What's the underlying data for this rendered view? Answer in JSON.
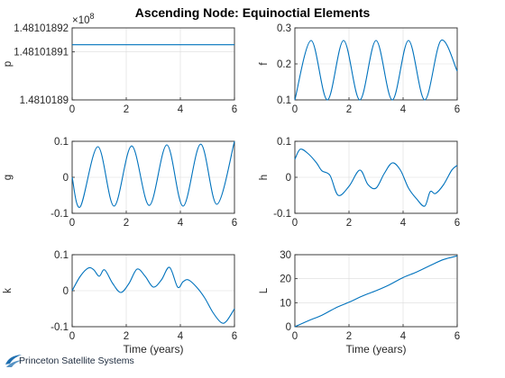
{
  "title": "Ascending Node: Equinoctial Elements",
  "logo": {
    "text": "Princeton Satellite Systems",
    "color": "#1f6fb0"
  },
  "colors": {
    "series": "#0072BD",
    "grid": "#dcdcdc",
    "axis": "#262626"
  },
  "chart_data": [
    {
      "type": "line",
      "ylabel": "p",
      "xlabel": "",
      "xlim": [
        0,
        6
      ],
      "ylim": [
        148101889,
        148101892
      ],
      "xticks": [
        "0",
        "2",
        "4",
        "6"
      ],
      "yticks": [
        "1.4810189",
        "1.48101891",
        "1.48101892"
      ],
      "ytick_values": [
        148101889,
        148101891,
        148101892
      ],
      "exponent": "×10",
      "exponent_power": "8",
      "grid": true,
      "series": [
        {
          "x": [
            0,
            6
          ],
          "y": [
            148101891.3,
            148101891.3
          ]
        }
      ]
    },
    {
      "type": "line",
      "ylabel": "f",
      "xlabel": "",
      "xlim": [
        0,
        6
      ],
      "ylim": [
        0.1,
        0.3
      ],
      "xticks": [
        "0",
        "2",
        "4",
        "6"
      ],
      "yticks": [
        "0.1",
        "0.2",
        "0.3"
      ],
      "ytick_values": [
        0.1,
        0.2,
        0.3
      ],
      "grid": true,
      "series": [
        {
          "x": [
            0,
            0.6,
            1.2,
            1.8,
            2.4,
            3.0,
            3.6,
            4.2,
            4.8,
            5.4,
            6.0
          ],
          "y": [
            0.1,
            0.265,
            0.1,
            0.265,
            0.1,
            0.265,
            0.1,
            0.265,
            0.1,
            0.265,
            0.18
          ]
        }
      ]
    },
    {
      "type": "line",
      "ylabel": "g",
      "xlabel": "",
      "xlim": [
        0,
        6
      ],
      "ylim": [
        -0.1,
        0.1
      ],
      "xticks": [
        "0",
        "2",
        "4",
        "6"
      ],
      "yticks": [
        "-0.1",
        "0",
        "0.1"
      ],
      "ytick_values": [
        -0.1,
        0,
        0.1
      ],
      "grid": true,
      "series": [
        {
          "x": [
            0,
            0.3,
            0.95,
            1.55,
            2.2,
            2.85,
            3.5,
            4.1,
            4.75,
            5.35,
            6.0
          ],
          "y": [
            0.0,
            -0.082,
            0.085,
            -0.08,
            0.087,
            -0.078,
            0.09,
            -0.08,
            0.092,
            -0.075,
            0.1
          ]
        }
      ]
    },
    {
      "type": "line",
      "ylabel": "h",
      "xlabel": "",
      "xlim": [
        0,
        6
      ],
      "ylim": [
        -0.1,
        0.1
      ],
      "xticks": [
        "0",
        "2",
        "4",
        "6"
      ],
      "yticks": [
        "-0.1",
        "0",
        "0.1"
      ],
      "ytick_values": [
        -0.1,
        0,
        0.1
      ],
      "grid": true,
      "series": [
        {
          "x": [
            0,
            0.2,
            0.5,
            0.8,
            1.0,
            1.3,
            1.6,
            2.0,
            2.4,
            2.7,
            3.0,
            3.3,
            3.6,
            3.9,
            4.2,
            4.5,
            4.8,
            5.0,
            5.2,
            5.5,
            5.8,
            6.0
          ],
          "y": [
            0.05,
            0.078,
            0.065,
            0.04,
            0.018,
            0.005,
            -0.05,
            -0.025,
            0.02,
            -0.02,
            -0.03,
            0.01,
            0.04,
            0.02,
            -0.03,
            -0.06,
            -0.08,
            -0.04,
            -0.045,
            -0.02,
            0.02,
            0.033
          ]
        }
      ]
    },
    {
      "type": "line",
      "ylabel": "k",
      "xlabel": "Time (years)",
      "xlim": [
        0,
        6
      ],
      "ylim": [
        -0.1,
        0.1
      ],
      "xticks": [
        "0",
        "2",
        "4",
        "6"
      ],
      "yticks": [
        "-0.1",
        "0",
        "0.1"
      ],
      "ytick_values": [
        -0.1,
        0,
        0.1
      ],
      "grid": true,
      "series": [
        {
          "x": [
            0,
            0.3,
            0.6,
            0.8,
            1.0,
            1.2,
            1.5,
            1.8,
            2.1,
            2.4,
            2.7,
            3.0,
            3.3,
            3.6,
            3.9,
            4.1,
            4.3,
            4.6,
            4.9,
            5.2,
            5.5,
            5.7,
            6.0
          ],
          "y": [
            0.0,
            0.04,
            0.063,
            0.058,
            0.04,
            0.058,
            0.02,
            -0.005,
            0.02,
            0.06,
            0.04,
            0.01,
            0.03,
            0.065,
            0.01,
            0.025,
            0.03,
            0.01,
            -0.02,
            -0.06,
            -0.088,
            -0.085,
            -0.05
          ]
        }
      ]
    },
    {
      "type": "line",
      "ylabel": "L",
      "xlabel": "Time (years)",
      "xlim": [
        0,
        6
      ],
      "ylim": [
        0,
        30
      ],
      "xticks": [
        "0",
        "2",
        "4",
        "6"
      ],
      "yticks": [
        "0",
        "10",
        "20",
        "30"
      ],
      "ytick_values": [
        0,
        10,
        20,
        30
      ],
      "grid": true,
      "series": [
        {
          "x": [
            0,
            0.5,
            1.0,
            1.5,
            2.0,
            2.5,
            3.0,
            3.5,
            4.0,
            4.5,
            5.0,
            5.5,
            6.0
          ],
          "y": [
            0.0,
            2.5,
            4.8,
            7.8,
            10.2,
            12.8,
            15.0,
            17.5,
            20.5,
            22.8,
            25.5,
            28.0,
            29.5
          ]
        }
      ]
    }
  ]
}
